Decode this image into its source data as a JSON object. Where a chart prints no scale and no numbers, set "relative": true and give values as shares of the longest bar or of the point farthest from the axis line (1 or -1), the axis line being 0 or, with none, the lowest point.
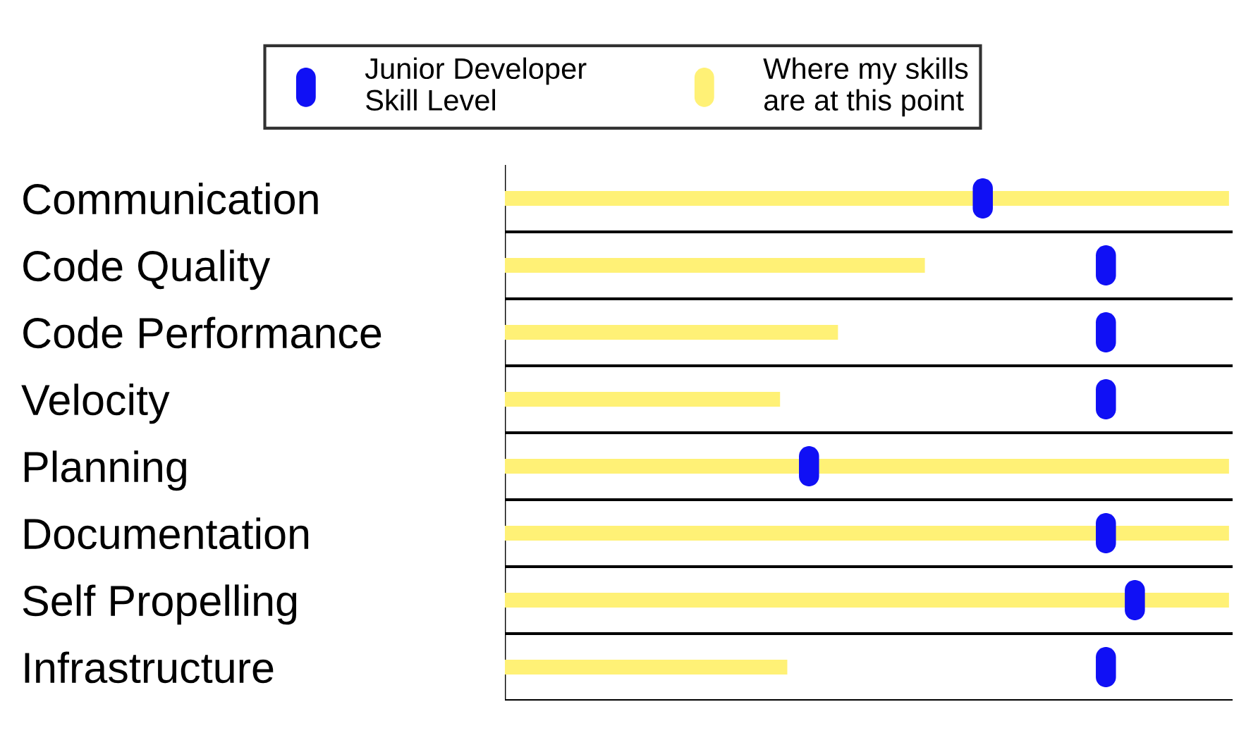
{
  "chart_data": {
    "type": "bar",
    "orientation": "horizontal",
    "relative": true,
    "legend": "top",
    "grid": "y",
    "categories": [
      "Communication",
      "Code Quality",
      "Code Performance",
      "Velocity",
      "Planning",
      "Documentation",
      "Self Propelling",
      "Infrastructure"
    ],
    "series": [
      {
        "name": "Junior Developer Skill Level",
        "type": "scatter",
        "color": "#1010f5",
        "values": [
          0.66,
          0.83,
          0.83,
          0.83,
          0.42,
          0.83,
          0.87,
          0.83
        ]
      },
      {
        "name": "Where my skills are at this point",
        "type": "bar",
        "color": "#fff176",
        "values": [
          1,
          0.58,
          0.46,
          0.38,
          1,
          1,
          1,
          0.39
        ]
      }
    ]
  }
}
